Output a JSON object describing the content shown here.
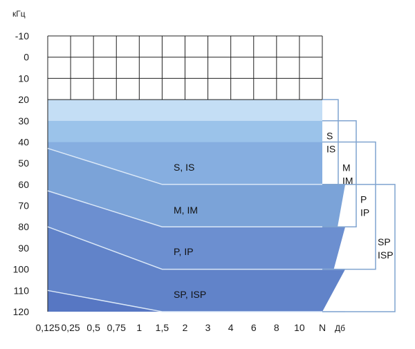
{
  "chart_data": {
    "type": "area",
    "y_unit": "кГц",
    "x_unit": "Дб",
    "y_ticks": [
      -10,
      0,
      10,
      20,
      30,
      40,
      50,
      60,
      70,
      80,
      90,
      100,
      110,
      120
    ],
    "y_tick_labels": [
      "-10",
      "0",
      "10",
      "20",
      "30",
      "40",
      "50",
      "60",
      "70",
      "80",
      "90",
      "100",
      "110",
      "120"
    ],
    "x_ticks": [
      "0,125",
      "0,25",
      "0,5",
      "0,75",
      "1",
      "1,5",
      "2",
      "3",
      "4",
      "6",
      "8",
      "10",
      "N"
    ],
    "ylim": [
      -10,
      120
    ],
    "y_inverted": true,
    "grid": true,
    "series": [
      {
        "name": "S, IS",
        "label": "S, IS",
        "fill": "#7ba3d8",
        "points": [
          [
            0,
            43
          ],
          [
            5,
            60
          ],
          [
            13,
            60
          ]
        ]
      },
      {
        "name": "M, IM",
        "label": "M, IM",
        "fill": "#6c8fd0",
        "points": [
          [
            0,
            63
          ],
          [
            5,
            80
          ],
          [
            13,
            80
          ]
        ]
      },
      {
        "name": "P, IP",
        "label": "P, IP",
        "fill": "#6183c9",
        "points": [
          [
            0,
            80
          ],
          [
            5,
            100
          ],
          [
            13,
            100
          ]
        ]
      },
      {
        "name": "SP, ISP",
        "label": "SP, ISP",
        "fill": "#5777c3",
        "points": [
          [
            0,
            110
          ],
          [
            5,
            120
          ],
          [
            13,
            120
          ]
        ]
      }
    ],
    "bands": [
      {
        "from": 20,
        "to": 30,
        "fill": "#c4def5"
      },
      {
        "from": 30,
        "to": 40,
        "fill": "#9bc3ea"
      },
      {
        "from": 40,
        "to": 120,
        "fill": "#86aee0"
      }
    ],
    "brackets": [
      {
        "lines": [
          "S",
          "IS"
        ],
        "from": 20,
        "to": 60
      },
      {
        "lines": [
          "M",
          "IM"
        ],
        "from": 30,
        "to": 80
      },
      {
        "lines": [
          "P",
          "IP"
        ],
        "from": 40,
        "to": 100
      },
      {
        "lines": [
          "SP",
          "ISP"
        ],
        "from": 60,
        "to": 120
      }
    ],
    "colors": {
      "grid": "#1f1f1f",
      "bracket": "#7fa3cf",
      "divider": "#dbe8f7"
    }
  }
}
